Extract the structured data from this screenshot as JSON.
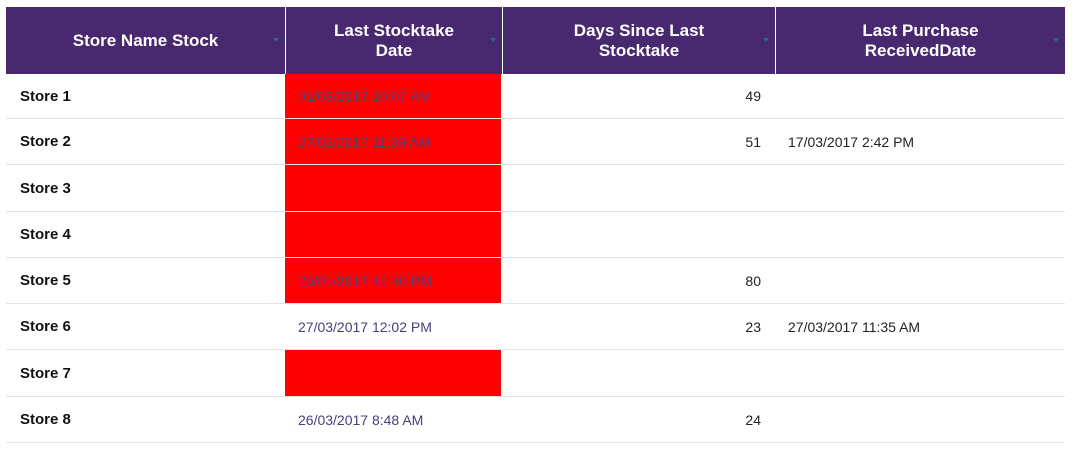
{
  "colors": {
    "header_bg": "#48286e",
    "header_text": "#ffffff",
    "flag_red": "#ff0000",
    "date_text": "#4a3d7a",
    "sort_icon": "sort-triangle-icon"
  },
  "table": {
    "columns": [
      {
        "label": "Store Name Stock"
      },
      {
        "label": "Last Stocktake\nDate"
      },
      {
        "label": "Days Since Last\nStocktake"
      },
      {
        "label": "Last Purchase\nReceivedDate"
      }
    ],
    "rows": [
      {
        "store": "Store 1",
        "last_stocktake": "01/03/2017 10:07 AM",
        "days_since": "49",
        "last_purchase": "",
        "flagged": true
      },
      {
        "store": "Store 2",
        "last_stocktake": "27/02/2017 11:39 AM",
        "days_since": "51",
        "last_purchase": "17/03/2017 2:42 PM",
        "flagged": true
      },
      {
        "store": "Store 3",
        "last_stocktake": "",
        "days_since": "",
        "last_purchase": "",
        "flagged": true
      },
      {
        "store": "Store 4",
        "last_stocktake": "",
        "days_since": "",
        "last_purchase": "",
        "flagged": true
      },
      {
        "store": "Store 5",
        "last_stocktake": "29/01/2017 12:40 PM",
        "days_since": "80",
        "last_purchase": "",
        "flagged": true
      },
      {
        "store": "Store 6",
        "last_stocktake": "27/03/2017 12:02 PM",
        "days_since": "23",
        "last_purchase": "27/03/2017 11:35 AM",
        "flagged": false
      },
      {
        "store": "Store 7",
        "last_stocktake": "",
        "days_since": "",
        "last_purchase": "",
        "flagged": true
      },
      {
        "store": "Store 8",
        "last_stocktake": "26/03/2017 8:48 AM",
        "days_since": "24",
        "last_purchase": "",
        "flagged": false
      }
    ]
  }
}
